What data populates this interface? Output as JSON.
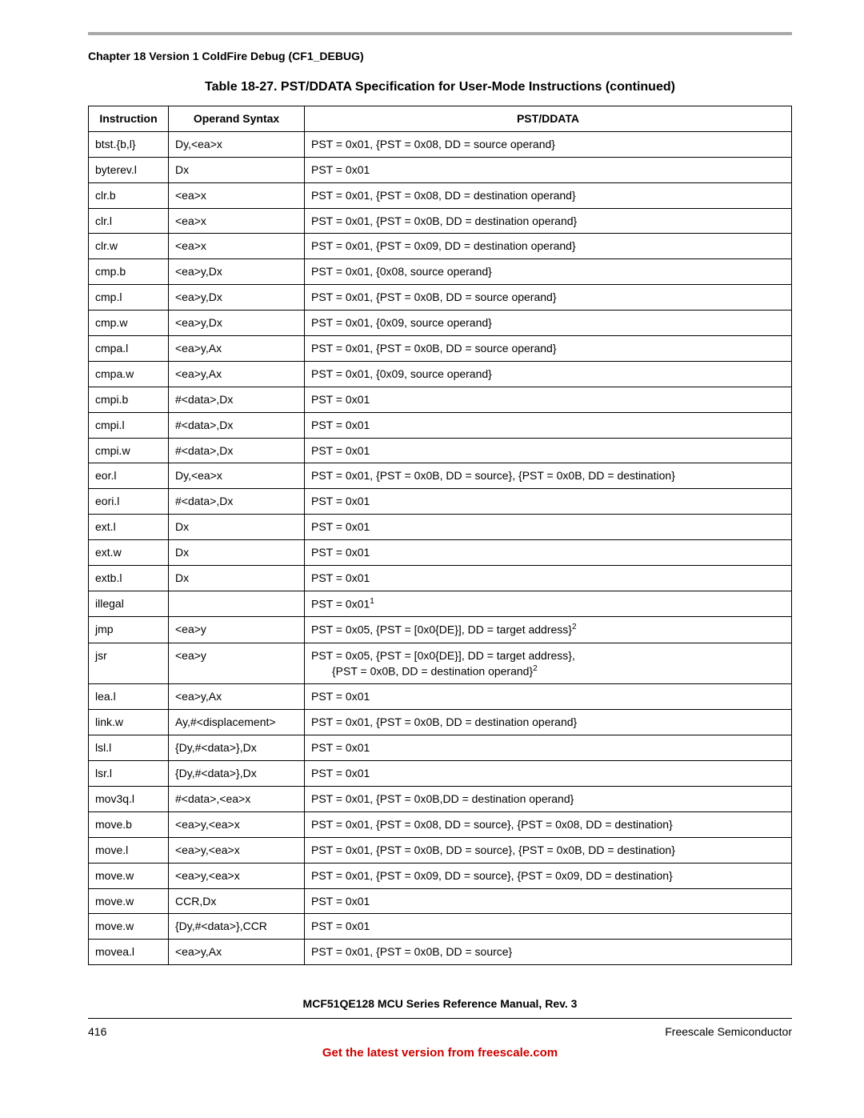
{
  "chapter_heading": "Chapter 18 Version 1 ColdFire Debug (CF1_DEBUG)",
  "table_caption": "Table 18-27. PST/DDATA Specification for User-Mode Instructions (continued)",
  "columns": [
    "Instruction",
    "Operand Syntax",
    "PST/DDATA"
  ],
  "rows": [
    {
      "instr": "btst.{b,l}",
      "op": "Dy,<ea>x",
      "pst": "PST = 0x01, {PST = 0x08, DD = source operand}"
    },
    {
      "instr": "byterev.l",
      "op": "Dx",
      "pst": "PST = 0x01"
    },
    {
      "instr": "clr.b",
      "op": "<ea>x",
      "pst": "PST = 0x01, {PST = 0x08, DD = destination operand}"
    },
    {
      "instr": "clr.l",
      "op": "<ea>x",
      "pst": "PST = 0x01, {PST = 0x0B, DD = destination operand}"
    },
    {
      "instr": "clr.w",
      "op": "<ea>x",
      "pst": "PST = 0x01, {PST = 0x09, DD = destination operand}"
    },
    {
      "instr": "cmp.b",
      "op": "<ea>y,Dx",
      "pst": "PST = 0x01, {0x08, source operand}"
    },
    {
      "instr": "cmp.l",
      "op": "<ea>y,Dx",
      "pst": "PST = 0x01, {PST = 0x0B, DD = source operand}"
    },
    {
      "instr": "cmp.w",
      "op": "<ea>y,Dx",
      "pst": "PST = 0x01, {0x09, source operand}"
    },
    {
      "instr": "cmpa.l",
      "op": "<ea>y,Ax",
      "pst": "PST = 0x01, {PST = 0x0B, DD = source operand}"
    },
    {
      "instr": "cmpa.w",
      "op": "<ea>y,Ax",
      "pst": "PST = 0x01, {0x09, source operand}"
    },
    {
      "instr": "cmpi.b",
      "op": "#<data>,Dx",
      "pst": "PST = 0x01"
    },
    {
      "instr": "cmpi.l",
      "op": "#<data>,Dx",
      "pst": "PST = 0x01"
    },
    {
      "instr": "cmpi.w",
      "op": "#<data>,Dx",
      "pst": "PST = 0x01"
    },
    {
      "instr": "eor.l",
      "op": "Dy,<ea>x",
      "pst": "PST = 0x01, {PST = 0x0B, DD = source}, {PST = 0x0B, DD = destination}"
    },
    {
      "instr": "eori.l",
      "op": "#<data>,Dx",
      "pst": "PST = 0x01"
    },
    {
      "instr": "ext.l",
      "op": "Dx",
      "pst": "PST = 0x01"
    },
    {
      "instr": "ext.w",
      "op": "Dx",
      "pst": "PST = 0x01"
    },
    {
      "instr": "extb.l",
      "op": "Dx",
      "pst": "PST = 0x01"
    },
    {
      "instr": "illegal",
      "op": "",
      "pst_html": "PST = 0x01<sup>1</sup>"
    },
    {
      "instr": "jmp",
      "op": "<ea>y",
      "pst_html": "PST = 0x05, {PST = [0x0{DE}], DD = target address}<sup>2</sup>"
    },
    {
      "instr": "jsr",
      "op": "<ea>y",
      "pst_html": "PST = 0x05, {PST = [0x0{DE}], DD = target address},<span class=\"jsr-second\">{PST = 0x0B, DD = destination operand}<sup>2</sup></span>"
    },
    {
      "instr": "lea.l",
      "op": "<ea>y,Ax",
      "pst": "PST = 0x01"
    },
    {
      "instr": "link.w",
      "op": "Ay,#<displacement>",
      "pst": "PST = 0x01, {PST = 0x0B, DD = destination operand}"
    },
    {
      "instr": "lsl.l",
      "op": "{Dy,#<data>},Dx",
      "pst": "PST = 0x01"
    },
    {
      "instr": "lsr.l",
      "op": "{Dy,#<data>},Dx",
      "pst": "PST = 0x01"
    },
    {
      "instr": "mov3q.l",
      "op": "#<data>,<ea>x",
      "pst": "PST = 0x01, {PST = 0x0B,DD = destination operand}"
    },
    {
      "instr": "move.b",
      "op": "<ea>y,<ea>x",
      "pst": "PST = 0x01, {PST = 0x08, DD = source}, {PST = 0x08, DD = destination}"
    },
    {
      "instr": "move.l",
      "op": "<ea>y,<ea>x",
      "pst": "PST = 0x01, {PST = 0x0B, DD = source}, {PST = 0x0B, DD = destination}"
    },
    {
      "instr": "move.w",
      "op": "<ea>y,<ea>x",
      "pst": "PST = 0x01, {PST = 0x09, DD = source}, {PST = 0x09, DD = destination}"
    },
    {
      "instr": "move.w",
      "op": "CCR,Dx",
      "pst": "PST = 0x01"
    },
    {
      "instr": "move.w",
      "op": "{Dy,#<data>},CCR",
      "pst": "PST = 0x01"
    },
    {
      "instr": "movea.l",
      "op": "<ea>y,Ax",
      "pst": "PST = 0x01, {PST = 0x0B, DD = source}"
    }
  ],
  "footer_title": "MCF51QE128 MCU Series Reference Manual, Rev. 3",
  "page_number": "416",
  "vendor": "Freescale Semiconductor",
  "footer_link": "Get the latest version from freescale.com"
}
